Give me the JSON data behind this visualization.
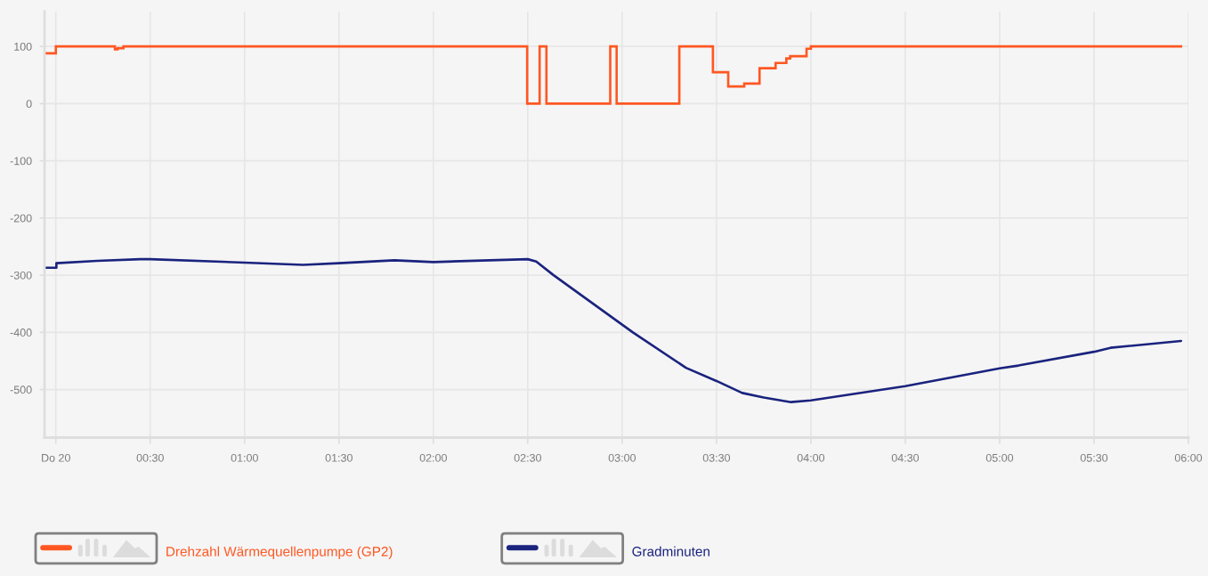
{
  "chart_data": {
    "type": "line",
    "series": [
      {
        "name": "Drehzahl Wärmequellenpumpe (GP2)",
        "type": "step",
        "color": "#ff5722",
        "x": [
          -0.057,
          0.0,
          0.313,
          0.327,
          0.358,
          2.497,
          2.563,
          2.599,
          2.937,
          2.971,
          3.303,
          3.481,
          3.562,
          3.647,
          3.728,
          3.813,
          3.87,
          3.89,
          3.977,
          4.0,
          5.961
        ],
        "values": [
          88,
          100,
          95,
          97,
          100,
          0,
          100,
          0,
          100,
          0,
          100,
          55,
          30,
          35,
          62,
          71,
          79,
          83,
          96,
          100,
          100
        ]
      },
      {
        "name": "Gradminuten",
        "color": "#1a237e",
        "x": [
          -0.057,
          0.003,
          0.003,
          0.22,
          0.446,
          0.5,
          1.0,
          1.31,
          1.5,
          1.794,
          2.0,
          2.5,
          2.545,
          2.637,
          3.057,
          3.338,
          3.5,
          3.636,
          3.75,
          3.895,
          4.0,
          4.5,
          5.0,
          5.1,
          5.5,
          5.587,
          5.961
        ],
        "values": [
          -287,
          -287,
          -279,
          -275,
          -272,
          -272,
          -278,
          -282,
          -279,
          -274,
          -277,
          -272,
          -276,
          -300,
          -400,
          -462,
          -485,
          -506,
          -514,
          -522,
          -519,
          -494,
          -463,
          -458,
          -434,
          -427,
          -415
        ]
      }
    ],
    "xlim": [
      -0.06,
      6.0
    ],
    "xticks": [
      {
        "value": 0,
        "label": "Do 20"
      },
      {
        "value": 0.5,
        "label": "00:30"
      },
      {
        "value": 1.0,
        "label": "01:00"
      },
      {
        "value": 1.5,
        "label": "01:30"
      },
      {
        "value": 2.0,
        "label": "02:00"
      },
      {
        "value": 2.5,
        "label": "02:30"
      },
      {
        "value": 3.0,
        "label": "03:00"
      },
      {
        "value": 3.5,
        "label": "03:30"
      },
      {
        "value": 4.0,
        "label": "04:00"
      },
      {
        "value": 4.5,
        "label": "04:30"
      },
      {
        "value": 5.0,
        "label": "05:00"
      },
      {
        "value": 5.5,
        "label": "05:30"
      },
      {
        "value": 6.0,
        "label": "06:00"
      }
    ],
    "ylim": [
      -584,
      161
    ],
    "yticks": [
      -500,
      -400,
      -300,
      -200,
      -100,
      0,
      100
    ],
    "grid": true,
    "legend": "bottom left"
  }
}
